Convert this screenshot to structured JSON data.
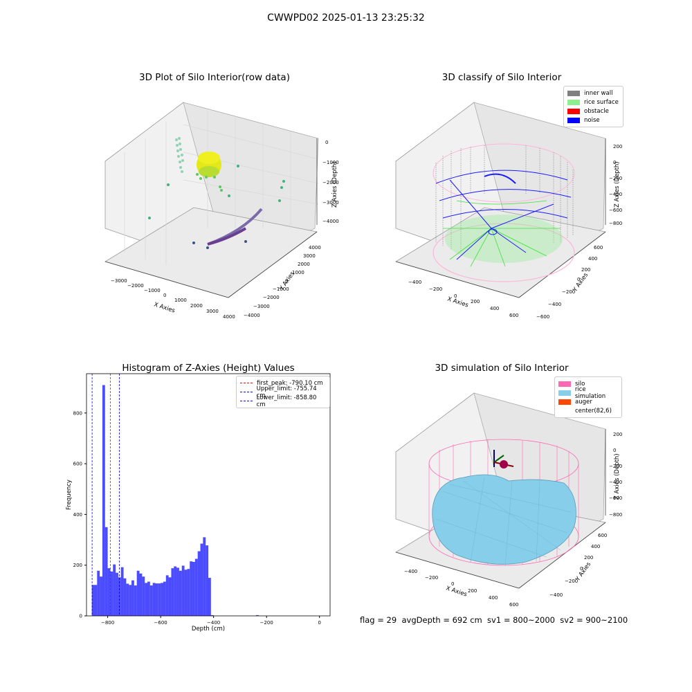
{
  "suptitle": "CWWPD02 2025-01-13 23:25:32",
  "footer": "flag = 29  avgDepth = 692 cm  sv1 = 800~2000  sv2 = 900~2100",
  "chart_data": [
    {
      "type": "scatter",
      "title": "3D Plot of Silo Interior(row data)",
      "xlabel": "X Axies",
      "ylabel": "Y Axies",
      "zlabel": "Z Axies (Depth)",
      "x_ticks": [
        "−3000",
        "−2000",
        "−1000",
        "0",
        "1000",
        "2000",
        "3000",
        "4000"
      ],
      "y_ticks": [
        "−4000",
        "−3000",
        "−2000",
        "−1000",
        "0",
        "1000",
        "2000",
        "3000",
        "4000"
      ],
      "z_ticks": [
        "0",
        "−1000",
        "−2000",
        "−3000",
        "−4000"
      ]
    },
    {
      "type": "scatter",
      "title": "3D classify of Silo Interior",
      "xlabel": "X Axies",
      "ylabel": "Y Axies",
      "zlabel": "Z Axies (Depth)",
      "x_ticks": [
        "−400",
        "−200",
        "0",
        "200",
        "400",
        "600"
      ],
      "y_ticks": [
        "−600",
        "−400",
        "−200",
        "0",
        "200",
        "400",
        "600"
      ],
      "z_ticks": [
        "200",
        "0",
        "−200",
        "−400",
        "−600",
        "−800"
      ],
      "legend": [
        {
          "label": "inner wall",
          "color": "#808080"
        },
        {
          "label": "rice surface",
          "color": "#90ee90"
        },
        {
          "label": "obstacle",
          "color": "#ff0000"
        },
        {
          "label": "noise",
          "color": "#0000ff"
        }
      ]
    },
    {
      "type": "bar",
      "title": "Histogram of Z-Axies (Height) Values",
      "xlabel": "Depth (cm)",
      "ylabel": "Frequency",
      "xlim": [
        -880,
        40
      ],
      "ylim": [
        0,
        955
      ],
      "x_ticks": [
        -800,
        -600,
        -400,
        -200,
        0
      ],
      "y_ticks": [
        0,
        200,
        400,
        600,
        800
      ],
      "bin_width": 10,
      "bin_start": -860,
      "values": [
        122,
        122,
        178,
        155,
        910,
        350,
        188,
        175,
        203,
        170,
        152,
        192,
        148,
        127,
        122,
        140,
        120,
        178,
        167,
        155,
        130,
        135,
        120,
        130,
        128,
        128,
        130,
        135,
        160,
        152,
        188,
        195,
        190,
        178,
        198,
        182,
        185,
        215,
        213,
        225,
        255,
        285,
        310,
        278,
        150,
        3,
        0,
        0,
        0,
        0,
        0,
        0,
        0,
        0,
        0,
        0,
        0,
        0,
        0,
        0,
        0,
        0,
        3
      ],
      "bar_color": "#0000ff",
      "lines": [
        {
          "label": "first_peak: -790.10 cm",
          "value": -790.1,
          "color": "#ff0000"
        },
        {
          "label": "Upper_limit: -755.74 cm",
          "value": -755.74,
          "color": "#0000ff"
        },
        {
          "label": "Lower_limit: -858.80 cm",
          "value": -858.8,
          "color": "#0000ff"
        }
      ]
    },
    {
      "type": "area",
      "title": "3D simulation of Silo Interior",
      "xlabel": "X Axies",
      "ylabel": "Y Axies",
      "zlabel": "Z Axies (Depth)",
      "x_ticks": [
        "−400",
        "−200",
        "0",
        "200",
        "400",
        "600"
      ],
      "y_ticks": [
        "−400",
        "−200",
        "0",
        "200",
        "400",
        "600"
      ],
      "z_ticks": [
        "200",
        "0",
        "−200",
        "−400",
        "−600",
        "−800"
      ],
      "legend": [
        {
          "label": "silo",
          "color": "#ff69b4"
        },
        {
          "label": "rice simulation",
          "color": "#87ceeb"
        },
        {
          "label": "auger",
          "color": "#ff4500"
        },
        {
          "label": "center(82,6)",
          "color": ""
        }
      ]
    }
  ]
}
